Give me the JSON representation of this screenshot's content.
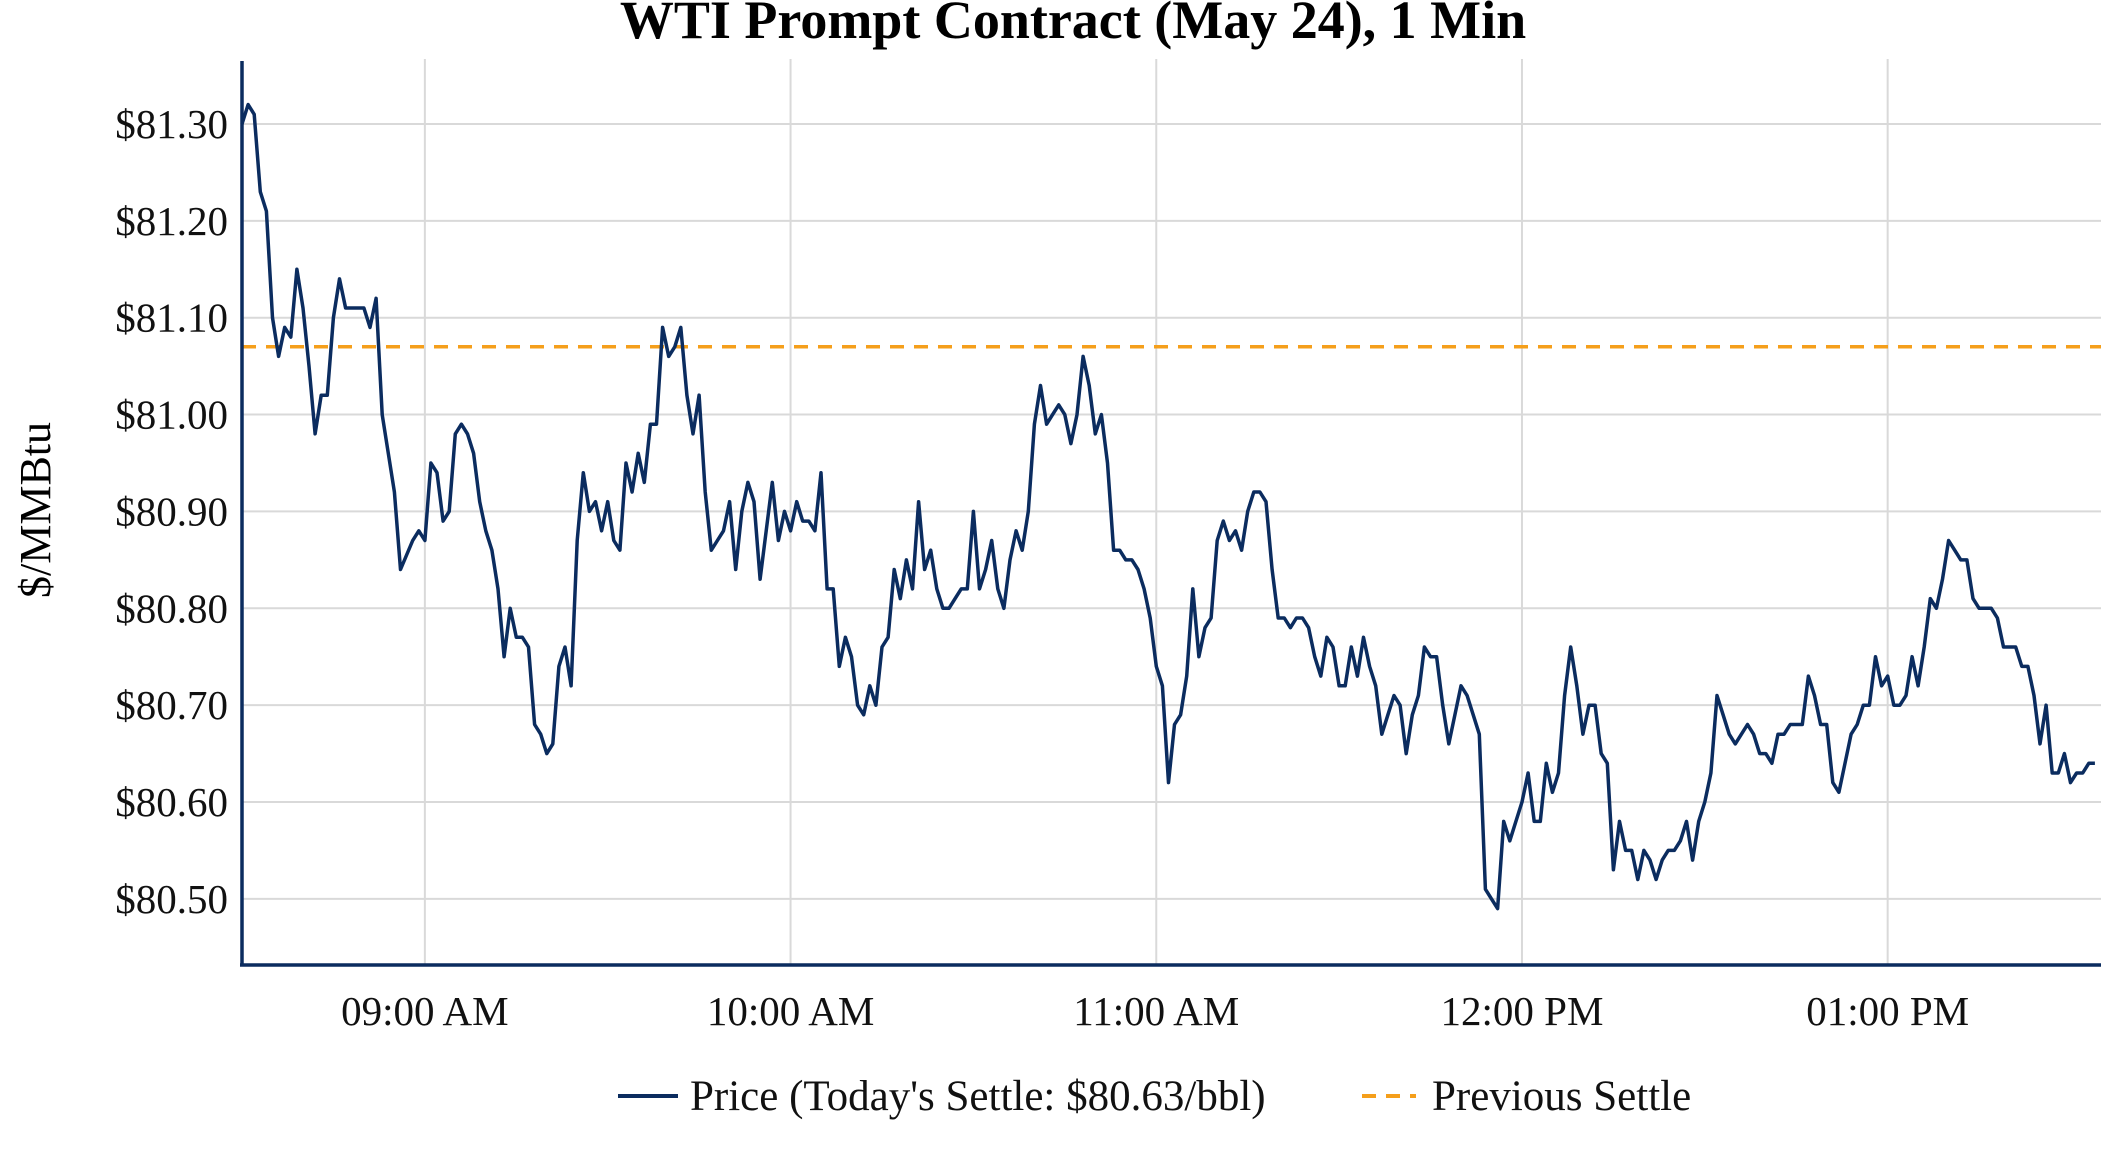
{
  "chart_data": {
    "type": "line",
    "title": "WTI Prompt Contract (May 24), 1 Min",
    "xlabel": "",
    "ylabel": "$/MMBtu",
    "x_range": [
      "08:30",
      "13:35"
    ],
    "ylim": [
      80.44,
      81.365
    ],
    "grid": true,
    "legend_placement": "bottom",
    "x_ticks": [
      {
        "time": "09:00",
        "label": "09:00 AM"
      },
      {
        "time": "10:00",
        "label": "10:00 AM"
      },
      {
        "time": "11:00",
        "label": "11:00 AM"
      },
      {
        "time": "12:00",
        "label": "12:00 PM"
      },
      {
        "time": "13:00",
        "label": "01:00 PM"
      }
    ],
    "y_ticks": [
      {
        "value": 81.3,
        "label": "$81.30"
      },
      {
        "value": 81.2,
        "label": "$81.20"
      },
      {
        "value": 81.1,
        "label": "$81.10"
      },
      {
        "value": 81.0,
        "label": "$81.00"
      },
      {
        "value": 80.9,
        "label": "$80.90"
      },
      {
        "value": 80.8,
        "label": "$80.80"
      },
      {
        "value": 80.7,
        "label": "$80.70"
      },
      {
        "value": 80.6,
        "label": "$80.60"
      },
      {
        "value": 80.5,
        "label": "$80.50"
      }
    ],
    "series": [
      {
        "name": "Price (Today's Settle: $80.63/bbl)",
        "color": "#0b2c5f",
        "style": "solid",
        "x": [
          "08:30",
          "08:31",
          "08:32",
          "08:33",
          "08:34",
          "08:35",
          "08:36",
          "08:37",
          "08:38",
          "08:39",
          "08:40",
          "08:41",
          "08:42",
          "08:43",
          "08:44",
          "08:45",
          "08:46",
          "08:47",
          "08:48",
          "08:50",
          "08:51",
          "08:52",
          "08:53",
          "08:55",
          "08:56",
          "08:58",
          "08:59",
          "09:00",
          "09:01",
          "09:02",
          "09:03",
          "09:04",
          "09:05",
          "09:06",
          "09:07",
          "09:08",
          "09:09",
          "09:10",
          "09:11",
          "09:12",
          "09:13",
          "09:14",
          "09:15",
          "09:16",
          "09:17",
          "09:18",
          "09:19",
          "09:20",
          "09:21",
          "09:22",
          "09:23",
          "09:24",
          "09:25",
          "09:26",
          "09:27",
          "09:28",
          "09:29",
          "09:30",
          "09:31",
          "09:32",
          "09:33",
          "09:34",
          "09:35",
          "09:36",
          "09:37",
          "09:38",
          "09:39",
          "09:40",
          "09:41",
          "09:42",
          "09:43",
          "09:44",
          "09:45",
          "09:46",
          "09:47",
          "09:48",
          "09:49",
          "09:50",
          "09:51",
          "09:52",
          "09:53",
          "09:54",
          "09:55",
          "09:56",
          "09:57",
          "09:58",
          "09:59",
          "10:00",
          "10:01",
          "10:02",
          "10:03",
          "10:04",
          "10:05",
          "10:06",
          "10:07",
          "10:08",
          "10:09",
          "10:10",
          "10:11",
          "10:12",
          "10:13",
          "10:14",
          "10:15",
          "10:16",
          "10:17",
          "10:18",
          "10:19",
          "10:20",
          "10:21",
          "10:22",
          "10:23",
          "10:24",
          "10:25",
          "10:26",
          "10:27",
          "10:28",
          "10:29",
          "10:30",
          "10:31",
          "10:32",
          "10:33",
          "10:34",
          "10:35",
          "10:36",
          "10:37",
          "10:38",
          "10:39",
          "10:40",
          "10:41",
          "10:42",
          "10:43",
          "10:44",
          "10:45",
          "10:46",
          "10:47",
          "10:48",
          "10:49",
          "10:50",
          "10:51",
          "10:52",
          "10:53",
          "10:54",
          "10:55",
          "10:56",
          "10:57",
          "10:58",
          "10:59",
          "11:00",
          "11:01",
          "11:02",
          "11:03",
          "11:04",
          "11:05",
          "11:06",
          "11:07",
          "11:08",
          "11:09",
          "11:10",
          "11:11",
          "11:12",
          "11:13",
          "11:14",
          "11:15",
          "11:16",
          "11:17",
          "11:18",
          "11:19",
          "11:20",
          "11:21",
          "11:22",
          "11:23",
          "11:24",
          "11:25",
          "11:26",
          "11:27",
          "11:28",
          "11:29",
          "11:30",
          "11:31",
          "11:32",
          "11:33",
          "11:34",
          "11:35",
          "11:36",
          "11:37",
          "11:38",
          "11:39",
          "11:40",
          "11:41",
          "11:42",
          "11:43",
          "11:44",
          "11:45",
          "11:46",
          "11:47",
          "11:48",
          "11:49",
          "11:50",
          "11:51",
          "11:52",
          "11:53",
          "11:54",
          "11:55",
          "11:56",
          "11:57",
          "11:58",
          "11:59",
          "12:00",
          "12:01",
          "12:02",
          "12:03",
          "12:04",
          "12:05",
          "12:06",
          "12:07",
          "12:08",
          "12:09",
          "12:10",
          "12:11",
          "12:12",
          "12:13",
          "12:14",
          "12:15",
          "12:16",
          "12:17",
          "12:18",
          "12:19",
          "12:20",
          "12:21",
          "12:22",
          "12:23",
          "12:24",
          "12:25",
          "12:26",
          "12:27",
          "12:28",
          "12:29",
          "12:30",
          "12:31",
          "12:32",
          "12:33",
          "12:34",
          "12:35",
          "12:36",
          "12:37",
          "12:38",
          "12:39",
          "12:40",
          "12:41",
          "12:42",
          "12:43",
          "12:44",
          "12:45",
          "12:46",
          "12:47",
          "12:48",
          "12:49",
          "12:50",
          "12:51",
          "12:52",
          "12:53",
          "12:54",
          "12:55",
          "12:56",
          "12:57",
          "12:58",
          "12:59",
          "13:00",
          "13:01",
          "13:02",
          "13:03",
          "13:04",
          "13:05",
          "13:06",
          "13:07",
          "13:08",
          "13:09",
          "13:10",
          "13:11",
          "13:12",
          "13:13",
          "13:14",
          "13:15",
          "13:16",
          "13:17",
          "13:18",
          "13:19",
          "13:20",
          "13:21",
          "13:22",
          "13:23",
          "13:24",
          "13:25",
          "13:26",
          "13:27",
          "13:28",
          "13:29",
          "13:30",
          "13:31",
          "13:32",
          "13:33",
          "13:34"
        ],
        "values": [
          81.3,
          81.32,
          81.31,
          81.23,
          81.21,
          81.1,
          81.06,
          81.09,
          81.08,
          81.15,
          81.11,
          81.05,
          80.98,
          81.02,
          81.02,
          81.1,
          81.14,
          81.11,
          81.11,
          81.11,
          81.09,
          81.12,
          81.0,
          80.92,
          80.84,
          80.87,
          80.88,
          80.87,
          80.95,
          80.94,
          80.89,
          80.9,
          80.98,
          80.99,
          80.98,
          80.96,
          80.91,
          80.88,
          80.86,
          80.82,
          80.75,
          80.8,
          80.77,
          80.77,
          80.76,
          80.68,
          80.67,
          80.65,
          80.66,
          80.74,
          80.76,
          80.72,
          80.87,
          80.94,
          80.9,
          80.91,
          80.88,
          80.91,
          80.87,
          80.86,
          80.95,
          80.92,
          80.96,
          80.93,
          80.99,
          80.99,
          81.09,
          81.06,
          81.07,
          81.09,
          81.02,
          80.98,
          81.02,
          80.92,
          80.86,
          80.87,
          80.88,
          80.91,
          80.84,
          80.9,
          80.93,
          80.91,
          80.83,
          80.88,
          80.93,
          80.87,
          80.9,
          80.88,
          80.91,
          80.89,
          80.89,
          80.88,
          80.94,
          80.82,
          80.82,
          80.74,
          80.77,
          80.75,
          80.7,
          80.69,
          80.72,
          80.7,
          80.76,
          80.77,
          80.84,
          80.81,
          80.85,
          80.82,
          80.91,
          80.84,
          80.86,
          80.82,
          80.8,
          80.8,
          80.81,
          80.82,
          80.82,
          80.9,
          80.82,
          80.84,
          80.87,
          80.82,
          80.8,
          80.85,
          80.88,
          80.86,
          80.9,
          80.99,
          81.03,
          80.99,
          81.0,
          81.01,
          81.0,
          80.97,
          81.0,
          81.06,
          81.03,
          80.98,
          81.0,
          80.95,
          80.86,
          80.86,
          80.85,
          80.85,
          80.84,
          80.82,
          80.79,
          80.74,
          80.72,
          80.62,
          80.68,
          80.69,
          80.73,
          80.82,
          80.75,
          80.78,
          80.79,
          80.87,
          80.89,
          80.87,
          80.88,
          80.86,
          80.9,
          80.92,
          80.92,
          80.91,
          80.84,
          80.79,
          80.79,
          80.78,
          80.79,
          80.79,
          80.78,
          80.75,
          80.73,
          80.77,
          80.76,
          80.72,
          80.72,
          80.76,
          80.73,
          80.77,
          80.74,
          80.72,
          80.67,
          80.69,
          80.71,
          80.7,
          80.65,
          80.69,
          80.71,
          80.76,
          80.75,
          80.75,
          80.7,
          80.66,
          80.69,
          80.72,
          80.71,
          80.69,
          80.67,
          80.51,
          80.5,
          80.49,
          80.58,
          80.56,
          80.58,
          80.6,
          80.63,
          80.58,
          80.58,
          80.64,
          80.61,
          80.63,
          80.71,
          80.76,
          80.72,
          80.67,
          80.7,
          80.7,
          80.65,
          80.64,
          80.53,
          80.58,
          80.55,
          80.55,
          80.52,
          80.55,
          80.54,
          80.52,
          80.54,
          80.55,
          80.55,
          80.56,
          80.58,
          80.54,
          80.58,
          80.6,
          80.63,
          80.71,
          80.69,
          80.67,
          80.66,
          80.67,
          80.68,
          80.67,
          80.65,
          80.65,
          80.64,
          80.67,
          80.67,
          80.68,
          80.68,
          80.68,
          80.73,
          80.71,
          80.68,
          80.68,
          80.62,
          80.61,
          80.64,
          80.67,
          80.68,
          80.7,
          80.7,
          80.75,
          80.72,
          80.73,
          80.7,
          80.7,
          80.71,
          80.75,
          80.72,
          80.76,
          80.81,
          80.8,
          80.83,
          80.87,
          80.86,
          80.85,
          80.85,
          80.81,
          80.8,
          80.8,
          80.8,
          80.79,
          80.76,
          80.76,
          80.76,
          80.74,
          80.74,
          80.71,
          80.66,
          80.7,
          80.63,
          80.63,
          80.65,
          80.62,
          80.63,
          80.63,
          80.64,
          80.64
        ]
      },
      {
        "name": "Previous Settle",
        "color": "#f59f1b",
        "style": "dashed",
        "value": 81.07
      }
    ]
  }
}
